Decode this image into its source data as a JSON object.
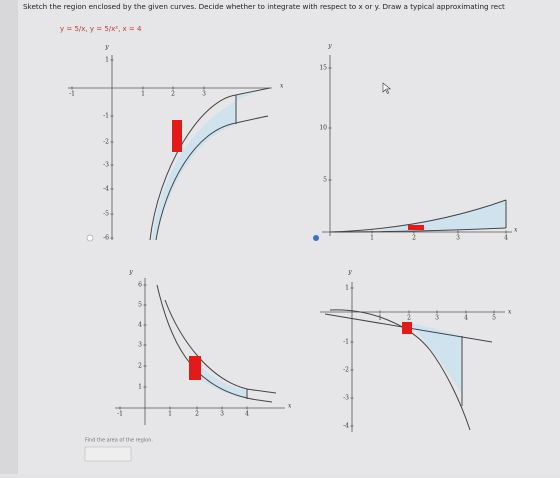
{
  "instruction": "Sketch the region enclosed by the given curves. Decide whether to integrate with respect to x or y. Draw a typical approximating rect",
  "curves": "y = 5/x,  y = 5/x²,  x = 4",
  "options": [
    {
      "x_label": "x",
      "y_label": "y",
      "x_ticks": [
        "-1",
        "1",
        "2",
        "3"
      ],
      "y_ticks": [
        "1",
        "-1",
        "-2",
        "-3",
        "-4",
        "-5",
        "-6"
      ]
    },
    {
      "x_label": "x",
      "y_label": "y",
      "x_ticks": [
        "1",
        "2",
        "3",
        "4"
      ],
      "y_ticks": [
        "5",
        "10",
        "15"
      ]
    },
    {
      "x_label": "x",
      "y_label": "y",
      "x_ticks": [
        "-1",
        "1",
        "2",
        "3",
        "4"
      ],
      "y_ticks": [
        "1",
        "2",
        "3",
        "4",
        "5",
        "6"
      ]
    },
    {
      "x_label": "x",
      "y_label": "y",
      "x_ticks": [
        "1",
        "2",
        "3",
        "4",
        "5"
      ],
      "y_ticks": [
        "1",
        "-1",
        "-2",
        "-3",
        "-4"
      ]
    }
  ],
  "footer": "Find the area of the region."
}
